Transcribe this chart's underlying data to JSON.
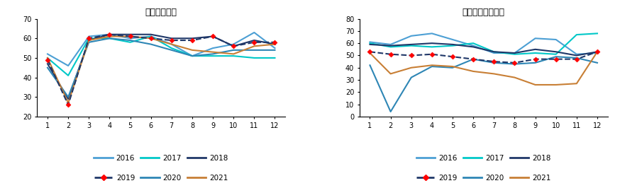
{
  "chart1": {
    "title": "铝型材开工率",
    "ylim": [
      20,
      70
    ],
    "yticks": [
      20,
      30,
      40,
      50,
      60,
      70
    ],
    "series": {
      "2016": [
        52,
        46,
        61,
        62,
        60,
        61,
        57,
        51,
        55,
        57,
        63,
        55
      ],
      "2017": [
        50,
        41,
        60,
        60,
        58,
        61,
        55,
        51,
        51,
        51,
        50,
        50
      ],
      "2018": [
        47,
        29,
        59,
        62,
        62,
        62,
        60,
        60,
        61,
        56,
        59,
        57
      ],
      "2019": [
        49,
        26,
        60,
        62,
        61,
        60,
        59,
        59,
        61,
        56,
        58,
        58
      ],
      "2020": [
        45,
        30,
        58,
        60,
        59,
        57,
        54,
        51,
        52,
        54,
        54,
        54
      ],
      "2021": [
        50,
        27,
        59,
        61,
        61,
        60,
        57,
        54,
        53,
        52,
        56,
        57
      ]
    }
  },
  "chart2": {
    "title": "原生铝合金开工率",
    "ylim": [
      0,
      80
    ],
    "yticks": [
      0,
      10,
      20,
      30,
      40,
      50,
      60,
      70,
      80
    ],
    "series": {
      "2016": [
        61,
        59,
        66,
        68,
        63,
        58,
        52,
        52,
        64,
        63,
        51,
        52
      ],
      "2017": [
        60,
        57,
        58,
        57,
        58,
        60,
        53,
        51,
        52,
        51,
        67,
        68
      ],
      "2018": [
        59,
        58,
        59,
        60,
        59,
        57,
        53,
        52,
        55,
        53,
        50,
        53
      ],
      "2019": [
        53,
        51,
        50,
        51,
        49,
        47,
        45,
        44,
        47,
        47,
        47,
        53
      ],
      "2020": [
        42,
        4,
        32,
        41,
        40,
        47,
        44,
        43,
        44,
        49,
        48,
        44
      ],
      "2021": [
        52,
        35,
        40,
        42,
        41,
        37,
        35,
        32,
        26,
        26,
        27,
        53
      ]
    }
  },
  "color_map": {
    "2016": "#4C9FD4",
    "2017": "#00C8C8",
    "2018": "#1F3768",
    "2019": "#1F3768",
    "2020": "#2E86B5",
    "2021": "#C87F35"
  },
  "months": [
    1,
    2,
    3,
    4,
    5,
    6,
    7,
    8,
    9,
    10,
    11,
    12
  ]
}
